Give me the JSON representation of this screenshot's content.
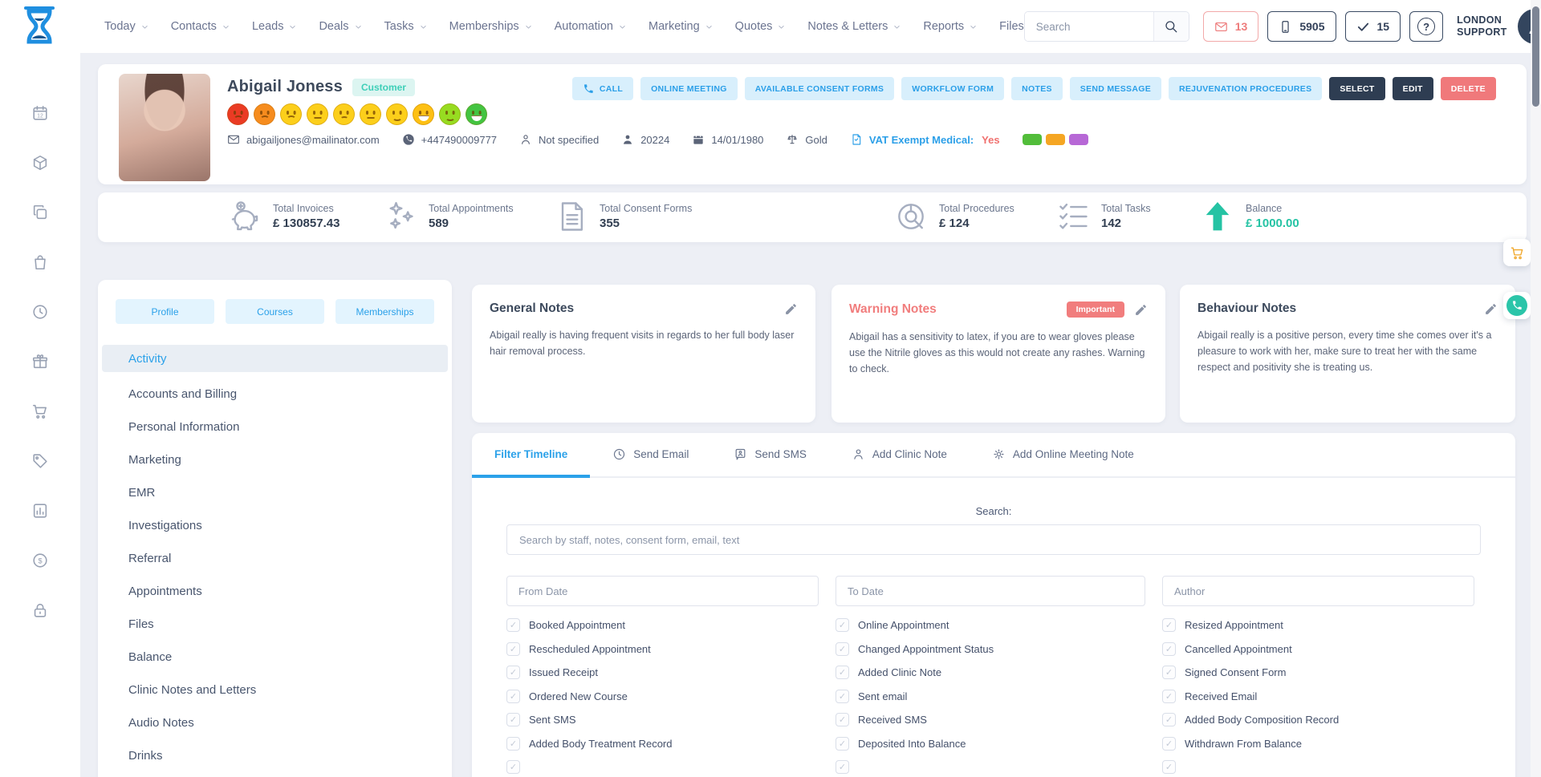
{
  "topnav": {
    "items": [
      {
        "label": "Today",
        "caret": true
      },
      {
        "label": "Contacts",
        "caret": true
      },
      {
        "label": "Leads",
        "caret": true
      },
      {
        "label": "Deals",
        "caret": true
      },
      {
        "label": "Tasks",
        "caret": true
      },
      {
        "label": "Memberships",
        "caret": true
      },
      {
        "label": "Automation",
        "caret": true
      },
      {
        "label": "Marketing",
        "caret": true
      },
      {
        "label": "Quotes",
        "caret": true
      },
      {
        "label": "Notes & Letters",
        "caret": true
      },
      {
        "label": "Reports",
        "caret": true
      },
      {
        "label": "Files",
        "caret": false
      }
    ],
    "search_placeholder": "Search",
    "mail_count": "13",
    "sms_count": "5905",
    "task_count": "15",
    "support_line1": "LONDON",
    "support_line2": "SUPPORT"
  },
  "rail": {
    "calendar_day": "12",
    "icons": [
      "calendar-icon",
      "package-icon",
      "copy-icon",
      "bag-icon",
      "history-icon",
      "gift-icon",
      "cart-icon",
      "tag-icon",
      "chart-icon",
      "coin-icon",
      "lock-icon"
    ]
  },
  "patient": {
    "name": "Abigail Joness",
    "type_badge": "Customer",
    "email": "abigailjones@mailinator.com",
    "phone": "+447490009777",
    "occupation": "Not specified",
    "id": "20224",
    "dob": "14/01/1980",
    "tier": "Gold",
    "vat_label": "VAT Exempt Medical:",
    "vat_value": "Yes",
    "rating_faces": [
      {
        "color": "#ea3b24",
        "mouth": "frown"
      },
      {
        "color": "#f68c1e",
        "mouth": "frown"
      },
      {
        "color": "#fccf1b",
        "mouth": "frown"
      },
      {
        "color": "#fccf1b",
        "mouth": "neutral"
      },
      {
        "color": "#fccf1b",
        "mouth": "frown-slight"
      },
      {
        "color": "#fccf1b",
        "mouth": "neutral"
      },
      {
        "color": "#fccf1b",
        "mouth": "smile"
      },
      {
        "color": "#fdc013",
        "mouth": "grin"
      },
      {
        "color": "#97dc21",
        "mouth": "smile"
      },
      {
        "color": "#43c441",
        "mouth": "grin"
      }
    ],
    "tag_colors": [
      "#52bd3a",
      "#f5a623",
      "#b768d6"
    ]
  },
  "actions": [
    {
      "label": "CALL",
      "style": "light",
      "icon": "handset-icon"
    },
    {
      "label": "ONLINE MEETING",
      "style": "light"
    },
    {
      "label": "AVAILABLE CONSENT FORMS",
      "style": "light"
    },
    {
      "label": "WORKFLOW FORM",
      "style": "light"
    },
    {
      "label": "NOTES",
      "style": "light"
    },
    {
      "label": "SEND MESSAGE",
      "style": "light"
    },
    {
      "label": "REJUVENATION PROCEDURES",
      "style": "light"
    },
    {
      "label": "SELECT",
      "style": "dark"
    },
    {
      "label": "EDIT",
      "style": "dark"
    },
    {
      "label": "DELETE",
      "style": "danger"
    }
  ],
  "stats": [
    {
      "icon": "piggy-icon",
      "label": "Total Invoices",
      "value": "£ 130857.43"
    },
    {
      "icon": "sparkles-icon",
      "label": "Total Appointments",
      "value": "589"
    },
    {
      "icon": "document-icon",
      "label": "Total Consent Forms",
      "value": "355"
    },
    {
      "icon": "donut-icon",
      "label": "Total Procedures",
      "value": "£ 124"
    },
    {
      "icon": "checklist-icon",
      "label": "Total Tasks",
      "value": "142"
    },
    {
      "icon": "arrow-up-icon",
      "label": "Balance",
      "value": "£ 1000.00",
      "accent": true
    }
  ],
  "profile_panel": {
    "tabs": [
      "Profile",
      "Courses",
      "Memberships"
    ],
    "menu": [
      {
        "label": "Activity",
        "active": true
      },
      {
        "label": "Accounts and Billing"
      },
      {
        "label": "Personal Information"
      },
      {
        "label": "Marketing"
      },
      {
        "label": "EMR"
      },
      {
        "label": "Investigations"
      },
      {
        "label": "Referral"
      },
      {
        "label": "Appointments"
      },
      {
        "label": "Files"
      },
      {
        "label": "Balance"
      },
      {
        "label": "Clinic Notes and Letters"
      },
      {
        "label": "Audio Notes"
      },
      {
        "label": "Drinks"
      }
    ]
  },
  "notes": [
    {
      "title": "General Notes",
      "title_color": "#3d4a5d",
      "badge": "",
      "body": "Abigail really is having frequent visits in regards to her full body laser hair removal process."
    },
    {
      "title": "Warning Notes",
      "title_color": "#f17d7d",
      "badge": "Important",
      "body": "Abigail has a sensitivity to latex, if you are to wear gloves please use the Nitrile gloves as this would not create any rashes. Warning to check."
    },
    {
      "title": "Behaviour Notes",
      "title_color": "#3d4a5d",
      "badge": "",
      "body": "Abigail really is a positive person, every time she comes over it's a pleasure to work with her, make sure to treat her with the same respect and positivity she is treating us."
    }
  ],
  "timeline": {
    "tabs": [
      {
        "label": "Filter Timeline",
        "icon": "",
        "active": true
      },
      {
        "label": "Send Email",
        "icon": "history-icon"
      },
      {
        "label": "Send SMS",
        "icon": "sms-icon"
      },
      {
        "label": "Add Clinic Note",
        "icon": "person-outline-icon"
      },
      {
        "label": "Add Online Meeting Note",
        "icon": "gear-icon"
      }
    ],
    "search_label": "Search:",
    "search_placeholder": "Search by staff, notes, consent form, email, text",
    "date_placeholders": [
      "From Date",
      "To Date",
      "Author"
    ],
    "checkboxes": [
      "Booked Appointment",
      "Online Appointment",
      "Resized Appointment",
      "Rescheduled Appointment",
      "Changed Appointment Status",
      "Cancelled Appointment",
      "Issued Receipt",
      "Added Clinic Note",
      "Signed Consent Form",
      "Ordered New Course",
      "Sent email",
      "Received Email",
      "Sent SMS",
      "Received SMS",
      "Added Body Composition Record",
      "Added Body Treatment Record",
      "Deposited Into Balance",
      "Withdrawn From Balance"
    ],
    "partial_row_checkboxes": 3,
    "all_checked": true
  }
}
